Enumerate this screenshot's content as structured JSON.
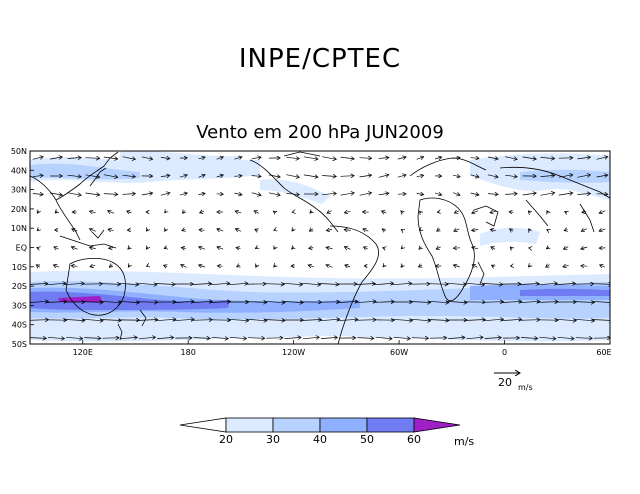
{
  "header": {
    "organization": "INPE/CPTEC"
  },
  "map": {
    "title": "Vento em 200 hPa JUN2009",
    "projection": "equirectangular",
    "lon_range": [
      90,
      420
    ],
    "lat_range": [
      -50,
      50
    ],
    "lat_ticks": [
      "50N",
      "40N",
      "30N",
      "20N",
      "10N",
      "EQ",
      "10S",
      "20S",
      "30S",
      "40S",
      "50S"
    ],
    "lon_ticks": [
      "120E",
      "180",
      "120W",
      "60W",
      "0",
      "60E"
    ],
    "coastline_color": "#000000"
  },
  "reference_vector": {
    "value": "20",
    "unit": "m/s"
  },
  "colorbar": {
    "labels": [
      "20",
      "30",
      "40",
      "50",
      "60"
    ],
    "unit": "m/s",
    "colors": [
      "#ffffff",
      "#dceaff",
      "#b7d2ff",
      "#8fb0ff",
      "#6f7cf2",
      "#a020c8"
    ]
  }
}
